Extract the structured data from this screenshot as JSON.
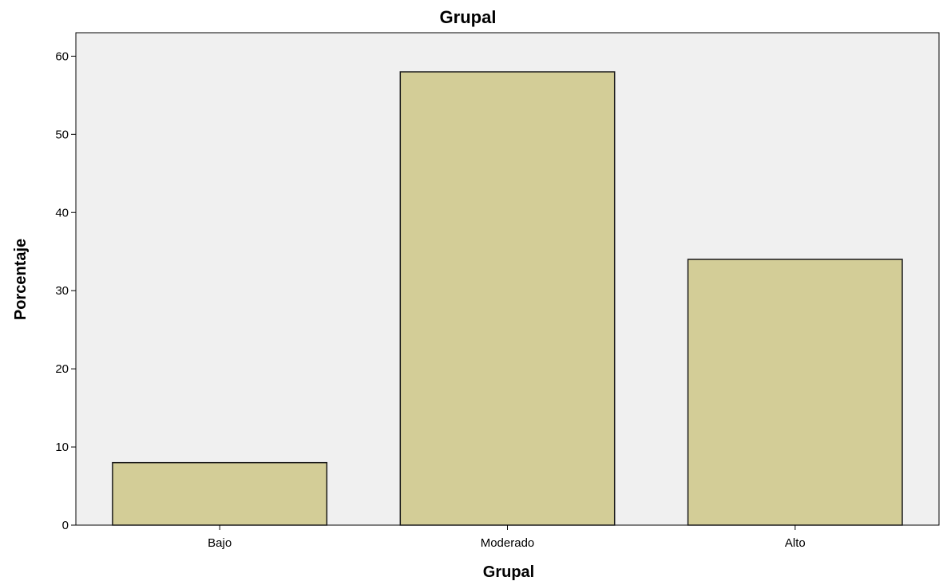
{
  "chart_data": {
    "type": "bar",
    "title": "Grupal",
    "xlabel": "Grupal",
    "ylabel": "Porcentaje",
    "categories": [
      "Bajo",
      "Moderado",
      "Alto"
    ],
    "values": [
      8,
      58,
      34
    ],
    "ylim": [
      0,
      63
    ],
    "yticks": [
      0,
      10,
      20,
      30,
      40,
      50,
      60
    ],
    "grid": false,
    "legend": "none",
    "colors": {
      "bar_fill": "#d3cd97",
      "bar_stroke": "#1a1a1a",
      "plot_background": "#f0f0f0",
      "axis": "#000000"
    }
  }
}
